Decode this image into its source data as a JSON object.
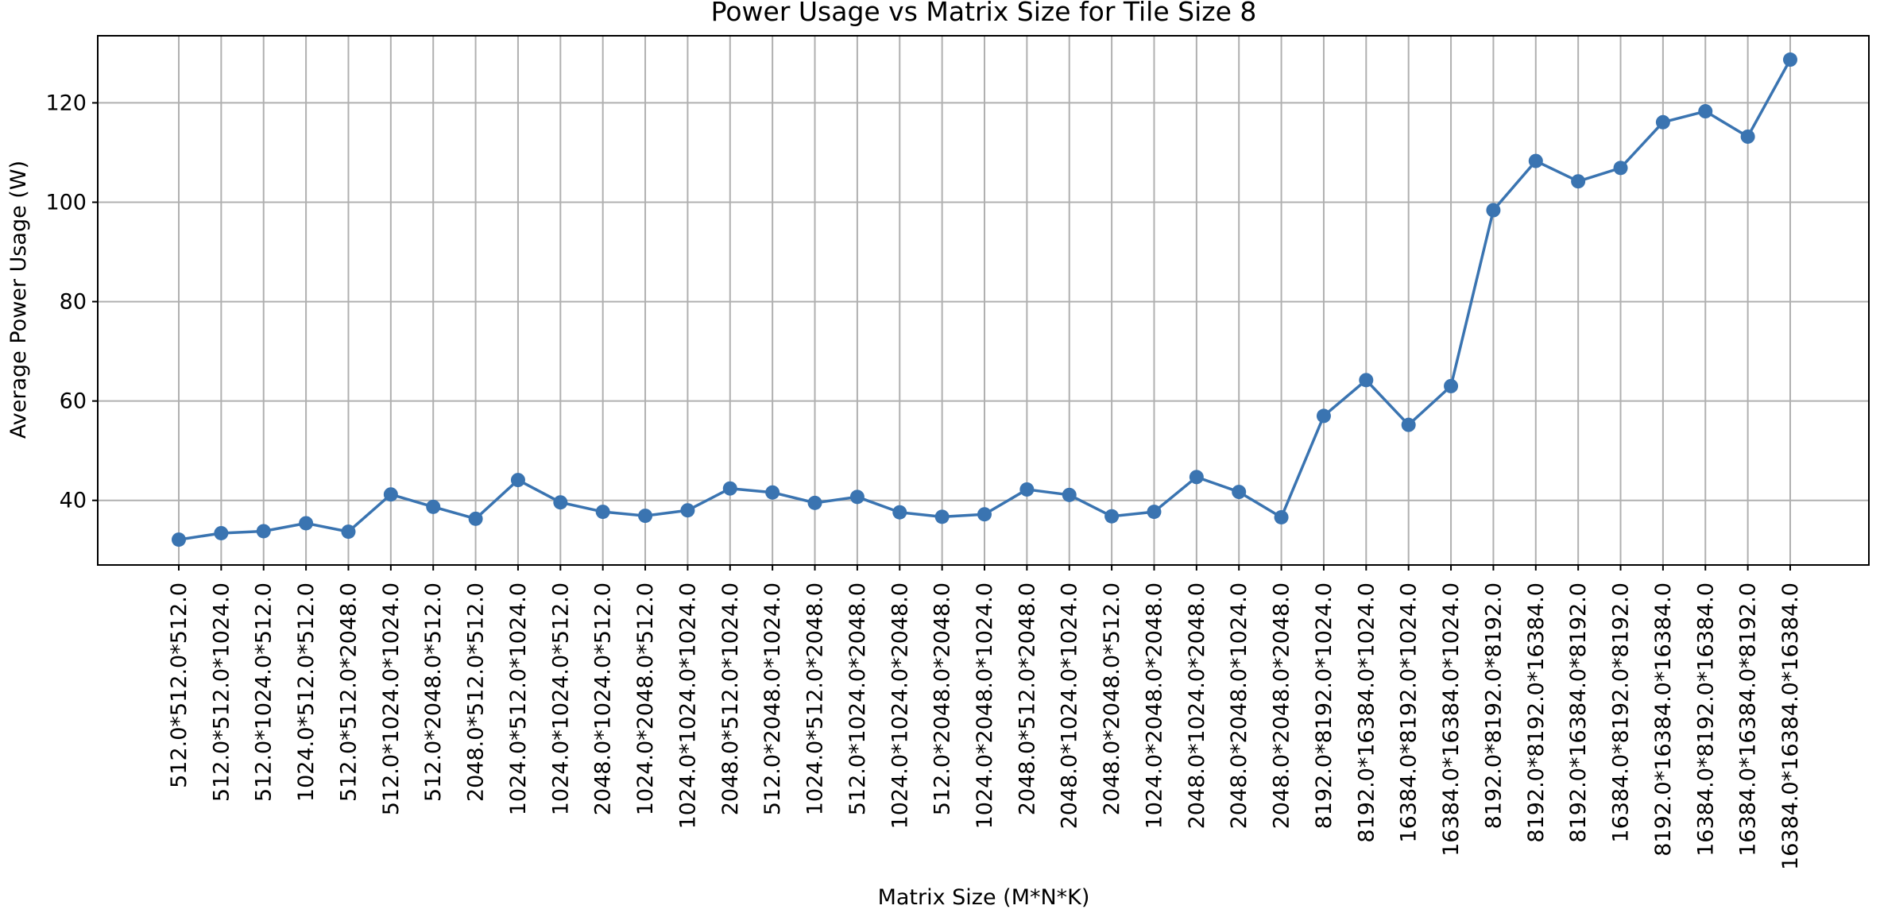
{
  "chart_data": {
    "type": "line",
    "title": "Power Usage vs Matrix Size for Tile Size 8",
    "xlabel": "Matrix Size (M*N*K)",
    "ylabel": "Average Power Usage (W)",
    "ylim": [
      27.0,
      133.5
    ],
    "yticks": [
      40,
      60,
      80,
      100,
      120
    ],
    "grid": true,
    "categories": [
      "512.0*512.0*512.0",
      "512.0*512.0*1024.0",
      "512.0*1024.0*512.0",
      "1024.0*512.0*512.0",
      "512.0*512.0*2048.0",
      "512.0*1024.0*1024.0",
      "512.0*2048.0*512.0",
      "2048.0*512.0*512.0",
      "1024.0*512.0*1024.0",
      "1024.0*1024.0*512.0",
      "2048.0*1024.0*512.0",
      "1024.0*2048.0*512.0",
      "1024.0*1024.0*1024.0",
      "2048.0*512.0*1024.0",
      "512.0*2048.0*1024.0",
      "1024.0*512.0*2048.0",
      "512.0*1024.0*2048.0",
      "1024.0*1024.0*2048.0",
      "512.0*2048.0*2048.0",
      "1024.0*2048.0*1024.0",
      "2048.0*512.0*2048.0",
      "2048.0*1024.0*1024.0",
      "2048.0*2048.0*512.0",
      "1024.0*2048.0*2048.0",
      "2048.0*1024.0*2048.0",
      "2048.0*2048.0*1024.0",
      "2048.0*2048.0*2048.0",
      "8192.0*8192.0*1024.0",
      "8192.0*16384.0*1024.0",
      "16384.0*8192.0*1024.0",
      "16384.0*16384.0*1024.0",
      "8192.0*8192.0*8192.0",
      "8192.0*8192.0*16384.0",
      "8192.0*16384.0*8192.0",
      "16384.0*8192.0*8192.0",
      "8192.0*16384.0*16384.0",
      "16384.0*8192.0*16384.0",
      "16384.0*16384.0*8192.0",
      "16384.0*16384.0*16384.0"
    ],
    "series": [
      {
        "color": "#3a74b1",
        "values": [
          32.1,
          33.4,
          33.8,
          35.4,
          33.7,
          41.2,
          38.7,
          36.3,
          44.1,
          39.6,
          37.7,
          36.9,
          38.0,
          42.4,
          41.6,
          39.5,
          40.7,
          37.6,
          36.7,
          37.2,
          42.2,
          41.1,
          36.8,
          37.7,
          44.7,
          41.7,
          36.6,
          57.0,
          64.2,
          55.2,
          63.0,
          98.4,
          108.3,
          104.2,
          106.9,
          116.1,
          118.3,
          113.2,
          128.7
        ]
      }
    ]
  }
}
